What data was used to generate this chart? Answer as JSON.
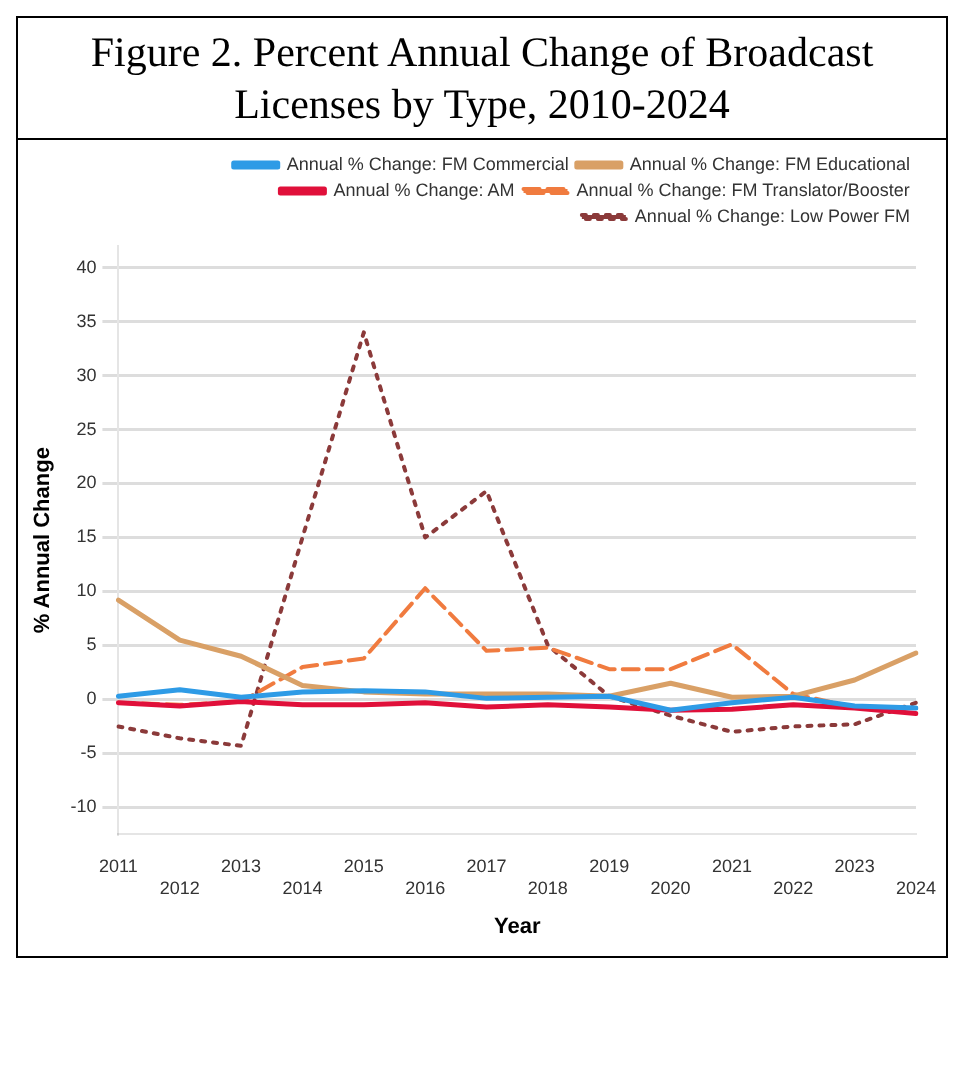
{
  "chart_data": {
    "type": "line",
    "title": "Figure 2. Percent Annual Change of Broadcast Licenses by Type, 2010-2024",
    "xlabel": "Year",
    "ylabel": "% Annual Change",
    "categories": [
      "2011",
      "2012",
      "2013",
      "2014",
      "2015",
      "2016",
      "2017",
      "2018",
      "2019",
      "2020",
      "2021",
      "2022",
      "2023",
      "2024"
    ],
    "series": [
      {
        "name": "Annual % Change: FM Commercial",
        "color": "#2e9be6",
        "line_style": "solid",
        "values": [
          0.3,
          0.9,
          0.2,
          0.7,
          0.8,
          0.7,
          0.1,
          0.2,
          0.3,
          -1.0,
          -0.3,
          0.2,
          -0.6,
          -0.8
        ]
      },
      {
        "name": "Annual % Change: FM Educational",
        "color": "#d9a066",
        "line_style": "solid",
        "values": [
          9.2,
          5.5,
          4,
          1.3,
          0.7,
          0.5,
          0.5,
          0.5,
          0.3,
          1.5,
          0.2,
          0.3,
          1.8,
          4.3
        ]
      },
      {
        "name": "Annual % Change: AM",
        "color": "#e0103a",
        "line_style": "solid",
        "values": [
          -0.3,
          -0.6,
          -0.2,
          -0.5,
          -0.5,
          -0.3,
          -0.7,
          -0.5,
          -0.7,
          -1.0,
          -0.9,
          -0.5,
          -0.8,
          -1.3
        ]
      },
      {
        "name": "Annual % Change: FM Translator/Booster",
        "color": "#f07b3f",
        "line_style": "dashed",
        "values": [
          -0.3,
          -0.5,
          -0.2,
          3,
          3.8,
          10.3,
          4.5,
          4.8,
          2.8,
          2.8,
          5.1,
          0.5,
          -0.7,
          -0.8
        ]
      },
      {
        "name": "Annual % Change: Low Power FM",
        "color": "#8b3a3a",
        "line_style": "dotted",
        "values": [
          -2.5,
          -3.6,
          -4.3,
          15,
          34,
          15,
          19.3,
          5,
          0.3,
          -1.5,
          -3,
          -2.5,
          -2.3,
          -0.3
        ]
      }
    ],
    "ylim": [
      -12.5,
      42
    ],
    "yticks": [
      -10,
      -5,
      0,
      5,
      10,
      15,
      20,
      25,
      30,
      35,
      40
    ],
    "grid": "y",
    "legend": "top right",
    "marker": "none"
  }
}
